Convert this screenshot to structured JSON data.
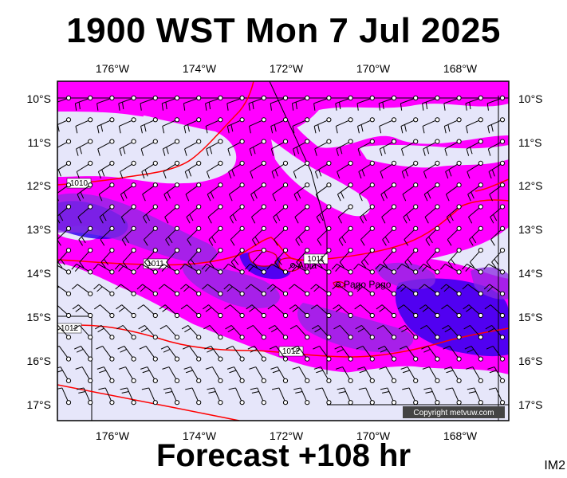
{
  "title": "1900 WST Mon 7 Jul 2025",
  "forecast": "Forecast +108 hr",
  "corner_label": "IM2",
  "copyright": "Copyright metvuw.com",
  "lon_labels": [
    "176°W",
    "174°W",
    "172°W",
    "170°W",
    "168°W"
  ],
  "lat_labels": [
    "10°S",
    "11°S",
    "12°S",
    "13°S",
    "14°S",
    "15°S",
    "16°S",
    "17°S"
  ],
  "isobar_labels": [
    "1010",
    "1011",
    "1011",
    "1012",
    "1012"
  ],
  "places": [
    "Apia",
    "Pago Pago"
  ],
  "colors": {
    "background_rain": "#e6e6fa",
    "light_rain": "#ff00ff",
    "heavy_rain": "#3300ee",
    "isobar": "#ff0000",
    "coast": "#cc0000",
    "wind_barb": "#000000"
  }
}
